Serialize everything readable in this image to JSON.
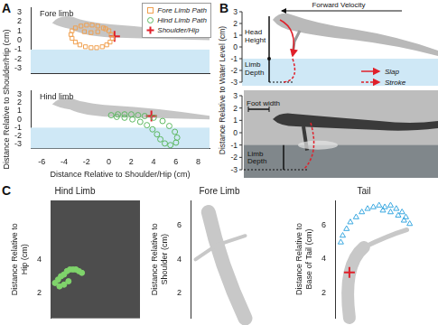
{
  "panel_labels": [
    "A",
    "B",
    "C"
  ],
  "chart_data": [
    {
      "type": "scatter",
      "annotation": "Fore limb",
      "y_label": "Distance Relative to Shoulder/Hip (cm)",
      "xlim": [
        -7,
        9
      ],
      "ylim": [
        -3.5,
        3.5
      ],
      "yticks": [
        -3,
        -2,
        -1,
        0,
        1,
        2,
        3
      ],
      "tick_labels": "y",
      "grid": false,
      "legend": "top right",
      "water_level": -1,
      "series": [
        {
          "name": "Fore Limb Path",
          "color": "#f0a050",
          "marker": "square",
          "x": [
            -0.5,
            -1,
            -1.5,
            -2,
            -2.5,
            -3,
            -3.3,
            -3.4,
            -3.3,
            -3.0,
            -2.6,
            -2.1,
            -1.6,
            -1.1,
            -0.6,
            -0.2,
            0.1,
            0.3,
            0.2,
            0.0,
            -0.3,
            -1.0,
            -1.6,
            -2.2
          ],
          "values": [
            1.3,
            1.5,
            1.6,
            1.6,
            1.5,
            1.3,
            1.0,
            0.6,
            0.2,
            -0.2,
            -0.5,
            -0.7,
            -0.8,
            -0.8,
            -0.7,
            -0.5,
            -0.2,
            0.2,
            0.6,
            1.0,
            1.2,
            0.9,
            0.8,
            0.9
          ]
        },
        {
          "name": "Shoulder/Hip",
          "color": "#e0202a",
          "marker": "plus",
          "x": [
            0.5
          ],
          "values": [
            0.4
          ]
        }
      ]
    },
    {
      "type": "scatter",
      "annotation": "Hind limb",
      "x_label": "Distance Relative to Shoulder/Hip (cm)",
      "xlim": [
        -7,
        9
      ],
      "xticks": [
        -6,
        -4,
        -2,
        0,
        2,
        4,
        6,
        8
      ],
      "ylim": [
        -3.5,
        3.5
      ],
      "yticks": [
        -3,
        -2,
        -1,
        0,
        1,
        2,
        3
      ],
      "grid": false,
      "water_level": -1,
      "series": [
        {
          "name": "Hind Limb Path",
          "color": "#5cb860",
          "marker": "circle",
          "x": [
            0.2,
            0.8,
            1.4,
            2.0,
            2.6,
            3.2,
            4.0,
            4.8,
            5.4,
            5.9,
            6.1,
            6.0,
            5.5,
            5.0,
            4.6,
            4.3,
            3.9,
            3.4,
            2.8,
            2.1,
            1.4,
            0.7
          ],
          "values": [
            0.5,
            0.6,
            0.6,
            0.6,
            0.5,
            0.4,
            0.2,
            -0.2,
            -0.8,
            -1.5,
            -2.2,
            -2.8,
            -3.1,
            -2.9,
            -2.4,
            -1.8,
            -1.2,
            -0.7,
            -0.3,
            0.0,
            0.2,
            0.3
          ]
        },
        {
          "name": "Shoulder/Hip",
          "color": "#e0202a",
          "marker": "plus",
          "x": [
            3.8
          ],
          "values": [
            0.4
          ]
        }
      ]
    },
    {
      "type": "scatter",
      "title": "Hind Limb",
      "y_label": "Distance Relative to Hip (cm)",
      "xlim": [
        0,
        6
      ],
      "ylim": [
        0.5,
        7.5
      ],
      "yticks": [
        2,
        4
      ],
      "tick_labels": "y",
      "grid": false,
      "series": [
        {
          "color": "#7fd36b",
          "marker": "dot",
          "x": [
            0.3,
            0.5,
            0.7,
            0.9,
            1.1,
            1.3,
            1.5,
            1.7,
            1.9,
            2.1,
            0.6,
            0.9,
            1.2
          ],
          "values": [
            2.6,
            2.8,
            3.0,
            3.1,
            3.3,
            3.4,
            3.4,
            3.4,
            3.3,
            3.2,
            2.4,
            2.5,
            2.7
          ]
        }
      ]
    },
    {
      "type": "scatter",
      "title": "Fore Limb",
      "y_label": "Distance Relative to Shoulder (cm)",
      "xlim": [
        0,
        5
      ],
      "ylim": [
        0.5,
        7.5
      ],
      "yticks": [
        2,
        4,
        6
      ],
      "tick_labels": "y",
      "grid": false,
      "series": []
    },
    {
      "type": "scatter",
      "title": "Tail",
      "y_label": "Distance Relative to Base of Tail (cm)",
      "xlim": [
        0,
        5
      ],
      "ylim": [
        0.5,
        7.5
      ],
      "yticks": [
        2,
        4,
        6
      ],
      "tick_labels": "y",
      "grid": false,
      "series": [
        {
          "color": "#3aa8e0",
          "marker": "triangle",
          "x": [
            0.3,
            0.4,
            0.6,
            0.8,
            1.1,
            1.4,
            1.7,
            2.0,
            2.3,
            2.6,
            2.9,
            3.2,
            3.5,
            3.7,
            3.9,
            3.6,
            3.3,
            2.9,
            2.5
          ],
          "values": [
            5.0,
            5.4,
            5.8,
            6.2,
            6.5,
            6.8,
            7.0,
            7.1,
            7.2,
            7.1,
            7.2,
            7.0,
            6.8,
            6.5,
            6.1,
            6.3,
            6.6,
            6.8,
            6.9
          ]
        },
        {
          "color": "#e0202a",
          "marker": "plus",
          "x": [
            0.75
          ],
          "values": [
            3.2
          ]
        }
      ]
    }
  ],
  "diagram": {
    "y_label": "Distance Relative to Water Level (cm)",
    "yticks": [
      3,
      2,
      1,
      0,
      -1,
      -2,
      -3
    ],
    "water_level": -1,
    "top": {
      "forward_velocity": "Forward Velocity",
      "head_height": "Head Height",
      "limb_depth": "Limb Depth"
    },
    "bottom": {
      "foot_width": "Foot width",
      "limb_depth": "Limb Depth"
    },
    "legend": [
      {
        "name": "Slap",
        "color": "#e0202a",
        "line_style": "solid"
      },
      {
        "name": "Stroke",
        "color": "#e0202a",
        "line_style": "dashed"
      }
    ]
  }
}
